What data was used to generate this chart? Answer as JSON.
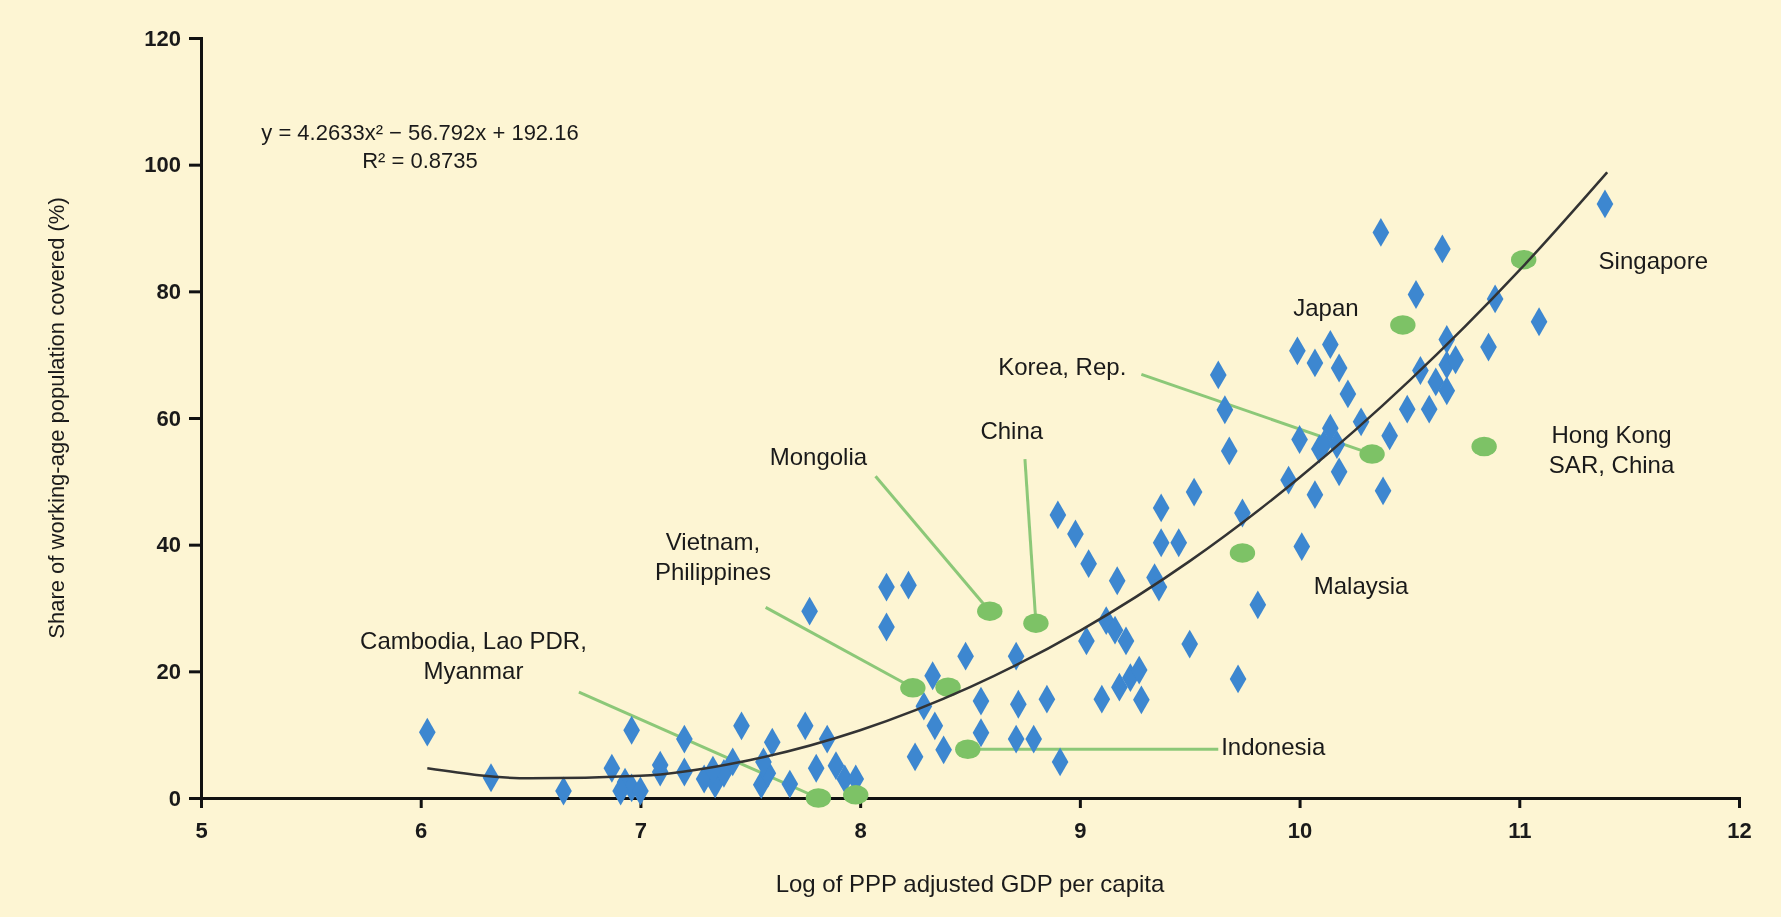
{
  "chart_data": {
    "type": "scatter",
    "xlabel": "Log of PPP adjusted GDP per capita",
    "ylabel": "Share of working-age population covered (%)",
    "xlim": [
      5,
      12
    ],
    "xticks": [
      5,
      6,
      7,
      8,
      9,
      10,
      11,
      12
    ],
    "ylim": [
      0,
      120
    ],
    "yticks": [
      0,
      20,
      40,
      60,
      80,
      100,
      120
    ],
    "grid": false,
    "series": [
      {
        "color": "#3d87d0",
        "marker": "diamond",
        "x": [
          6.03,
          6.32,
          6.65,
          6.96,
          6.87,
          6.93,
          6.96,
          7.0,
          6.91,
          7.09,
          7.09,
          7.2,
          7.2,
          7.29,
          7.34,
          7.38,
          7.42,
          7.33,
          7.46,
          7.55,
          7.58,
          7.6,
          7.56,
          7.68,
          7.75,
          7.85,
          7.8,
          7.89,
          7.93,
          7.98,
          7.77,
          8.12,
          8.12,
          8.22,
          8.25,
          8.29,
          8.33,
          8.34,
          8.38,
          8.48,
          8.55,
          8.55,
          8.71,
          8.72,
          8.79,
          8.85,
          8.9,
          8.91,
          8.98,
          9.03,
          9.04,
          9.1,
          9.12,
          9.16,
          9.17,
          9.18,
          9.21,
          9.23,
          9.27,
          9.28,
          9.34,
          9.36,
          9.37,
          9.37,
          9.45,
          9.5,
          9.52,
          9.63,
          9.66,
          9.68,
          9.72,
          9.74,
          9.81,
          9.95,
          9.99,
          10.0,
          10.01,
          10.07,
          10.07,
          10.09,
          10.11,
          10.14,
          10.14,
          10.17,
          10.18,
          10.18,
          10.22,
          10.28,
          10.37,
          10.38,
          10.41,
          10.49,
          10.53,
          10.55,
          10.59,
          10.62,
          10.65,
          10.67,
          10.67,
          10.67,
          10.71,
          10.86,
          10.89,
          11.09,
          11.39,
          8.71
        ],
        "values": [
          10.4,
          3.2,
          1.1,
          10.7,
          4.7,
          2.5,
          1.6,
          1.1,
          1.1,
          5.2,
          4.1,
          9.3,
          4.1,
          3.0,
          2.2,
          3.9,
          5.7,
          4.4,
          11.4,
          2.1,
          3.9,
          8.8,
          5.7,
          2.2,
          11.4,
          9.3,
          4.7,
          5.1,
          3.0,
          3.0,
          29.5,
          33.3,
          27.0,
          33.6,
          6.5,
          14.5,
          19.3,
          11.4,
          7.6,
          22.4,
          15.3,
          10.3,
          22.4,
          14.8,
          9.3,
          15.6,
          44.7,
          5.7,
          41.7,
          24.8,
          37.0,
          15.6,
          28.0,
          26.5,
          34.3,
          17.5,
          24.8,
          19.0,
          20.2,
          15.5,
          34.8,
          33.3,
          45.8,
          40.3,
          40.3,
          24.3,
          48.3,
          66.8,
          61.3,
          54.8,
          18.8,
          45.0,
          30.5,
          50.2,
          70.6,
          56.6,
          39.7,
          68.7,
          47.9,
          55.1,
          55.8,
          71.6,
          58.4,
          55.8,
          67.9,
          51.5,
          63.8,
          59.4,
          89.3,
          48.5,
          57.2,
          61.4,
          79.5,
          67.5,
          61.4,
          65.7,
          86.7,
          72.4,
          68.4,
          64.3,
          69.2,
          71.2,
          78.8,
          75.2,
          93.8,
          9.3
        ]
      },
      {
        "color": "#7dc266",
        "marker": "circle",
        "x": [
          7.81,
          7.98,
          8.24,
          8.4,
          8.59,
          8.8,
          8.49,
          9.74,
          10.33,
          10.47,
          11.02,
          10.84
        ],
        "values": [
          0,
          0.5,
          17.4,
          17.5,
          29.5,
          27.6,
          7.7,
          38.7,
          54.3,
          74.7,
          85,
          55.5
        ]
      },
      {
        "type": "line",
        "color": "#333333",
        "marker": "none",
        "line_style": "solid",
        "x": [
          6.03,
          6.5,
          7,
          7.5,
          8,
          8.5,
          9,
          9.5,
          10,
          10.5,
          11,
          11.4
        ],
        "values": [
          4.7,
          3.1,
          3.5,
          6.0,
          10.7,
          17.5,
          26.4,
          37.4,
          50.6,
          65.9,
          83.3,
          98.8
        ]
      }
    ],
    "annotations": [
      "y = 4.2633x² − 56.792x + 192.16",
      "R² = 0.8735",
      {
        "text": "Cambodia, Lao PDR, Myanmar",
        "x": 7.81,
        "y": 0
      },
      {
        "text": "Vietnam, Philippines",
        "x": 8.24,
        "y": 17.4
      },
      {
        "text": "Mongolia",
        "x": 8.59,
        "y": 29.5
      },
      {
        "text": "China",
        "x": 8.8,
        "y": 27.6
      },
      {
        "text": "Korea, Rep.",
        "x": 10.33,
        "y": 54.3
      },
      "Japan",
      "Singapore",
      "Hong Kong SAR, China",
      "Malaysia",
      {
        "text": "Indonesia",
        "x": 8.49,
        "y": 7.7
      }
    ]
  }
}
